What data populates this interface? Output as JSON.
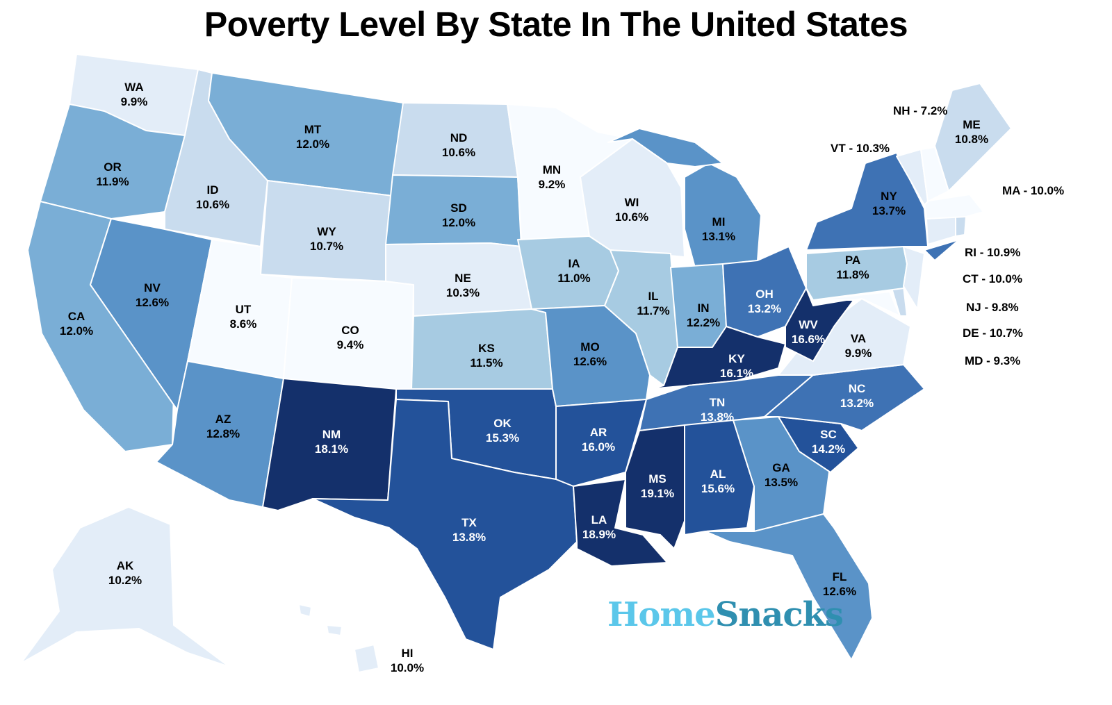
{
  "title": "Poverty Level By State In The United States",
  "logo": {
    "part1": "Home",
    "part2": "Snacks",
    "color1": "#5bc7ea",
    "color2": "#2f8fb0"
  },
  "colors": {
    "c1": "#f7fbff",
    "c2": "#e3edf8",
    "c3": "#c9dcee",
    "c4": "#a7cbe2",
    "c5": "#7aaed6",
    "c6": "#5a93c8",
    "c7": "#3e72b4",
    "c8": "#23529a",
    "c9": "#14306b",
    "border": "#ffffff"
  },
  "states": {
    "WA": {
      "value": "9.9%",
      "level": 2
    },
    "OR": {
      "value": "11.9%",
      "level": 5
    },
    "CA": {
      "value": "12.0%",
      "level": 5
    },
    "ID": {
      "value": "10.6%",
      "level": 3
    },
    "NV": {
      "value": "12.6%",
      "level": 6
    },
    "MT": {
      "value": "12.0%",
      "level": 5
    },
    "WY": {
      "value": "10.7%",
      "level": 3
    },
    "UT": {
      "value": "8.6%",
      "level": 1
    },
    "CO": {
      "value": "9.4%",
      "level": 1
    },
    "AZ": {
      "value": "12.8%",
      "level": 6
    },
    "NM": {
      "value": "18.1%",
      "level": 9
    },
    "ND": {
      "value": "10.6%",
      "level": 3
    },
    "SD": {
      "value": "12.0%",
      "level": 5
    },
    "NE": {
      "value": "10.3%",
      "level": 2
    },
    "KS": {
      "value": "11.5%",
      "level": 4
    },
    "OK": {
      "value": "15.3%",
      "level": 8
    },
    "TX": {
      "value": "13.8%",
      "level": 8
    },
    "MN": {
      "value": "9.2%",
      "level": 1
    },
    "IA": {
      "value": "11.0%",
      "level": 4
    },
    "MO": {
      "value": "12.6%",
      "level": 6
    },
    "AR": {
      "value": "16.0%",
      "level": 8
    },
    "LA": {
      "value": "18.9%",
      "level": 9
    },
    "WI": {
      "value": "10.6%",
      "level": 2
    },
    "IL": {
      "value": "11.7%",
      "level": 4
    },
    "MI": {
      "value": "13.1%",
      "level": 6
    },
    "IN": {
      "value": "12.2%",
      "level": 5
    },
    "OH": {
      "value": "13.2%",
      "level": 7
    },
    "KY": {
      "value": "16.1%",
      "level": 9
    },
    "TN": {
      "value": "13.8%",
      "level": 7
    },
    "MS": {
      "value": "19.1%",
      "level": 9
    },
    "AL": {
      "value": "15.6%",
      "level": 8
    },
    "GA": {
      "value": "13.5%",
      "level": 6
    },
    "FL": {
      "value": "12.6%",
      "level": 6
    },
    "SC": {
      "value": "14.2%",
      "level": 8
    },
    "NC": {
      "value": "13.2%",
      "level": 7
    },
    "VA": {
      "value": "9.9%",
      "level": 2
    },
    "WV": {
      "value": "16.6%",
      "level": 9
    },
    "PA": {
      "value": "11.8%",
      "level": 4
    },
    "NY": {
      "value": "13.7%",
      "level": 7
    },
    "ME": {
      "value": "10.8%",
      "level": 3
    },
    "AK": {
      "value": "10.2%",
      "level": 2
    },
    "HI": {
      "value": "10.0%",
      "level": 2
    }
  },
  "small_states": {
    "NH": "NH - 7.2%",
    "VT": "VT - 10.3%",
    "MA": "MA - 10.0%",
    "RI": "RI - 10.9%",
    "CT": "CT - 10.0%",
    "NJ": "NJ - 9.8%",
    "DE": "DE - 10.7%",
    "MD": "MD - 9.3%"
  }
}
